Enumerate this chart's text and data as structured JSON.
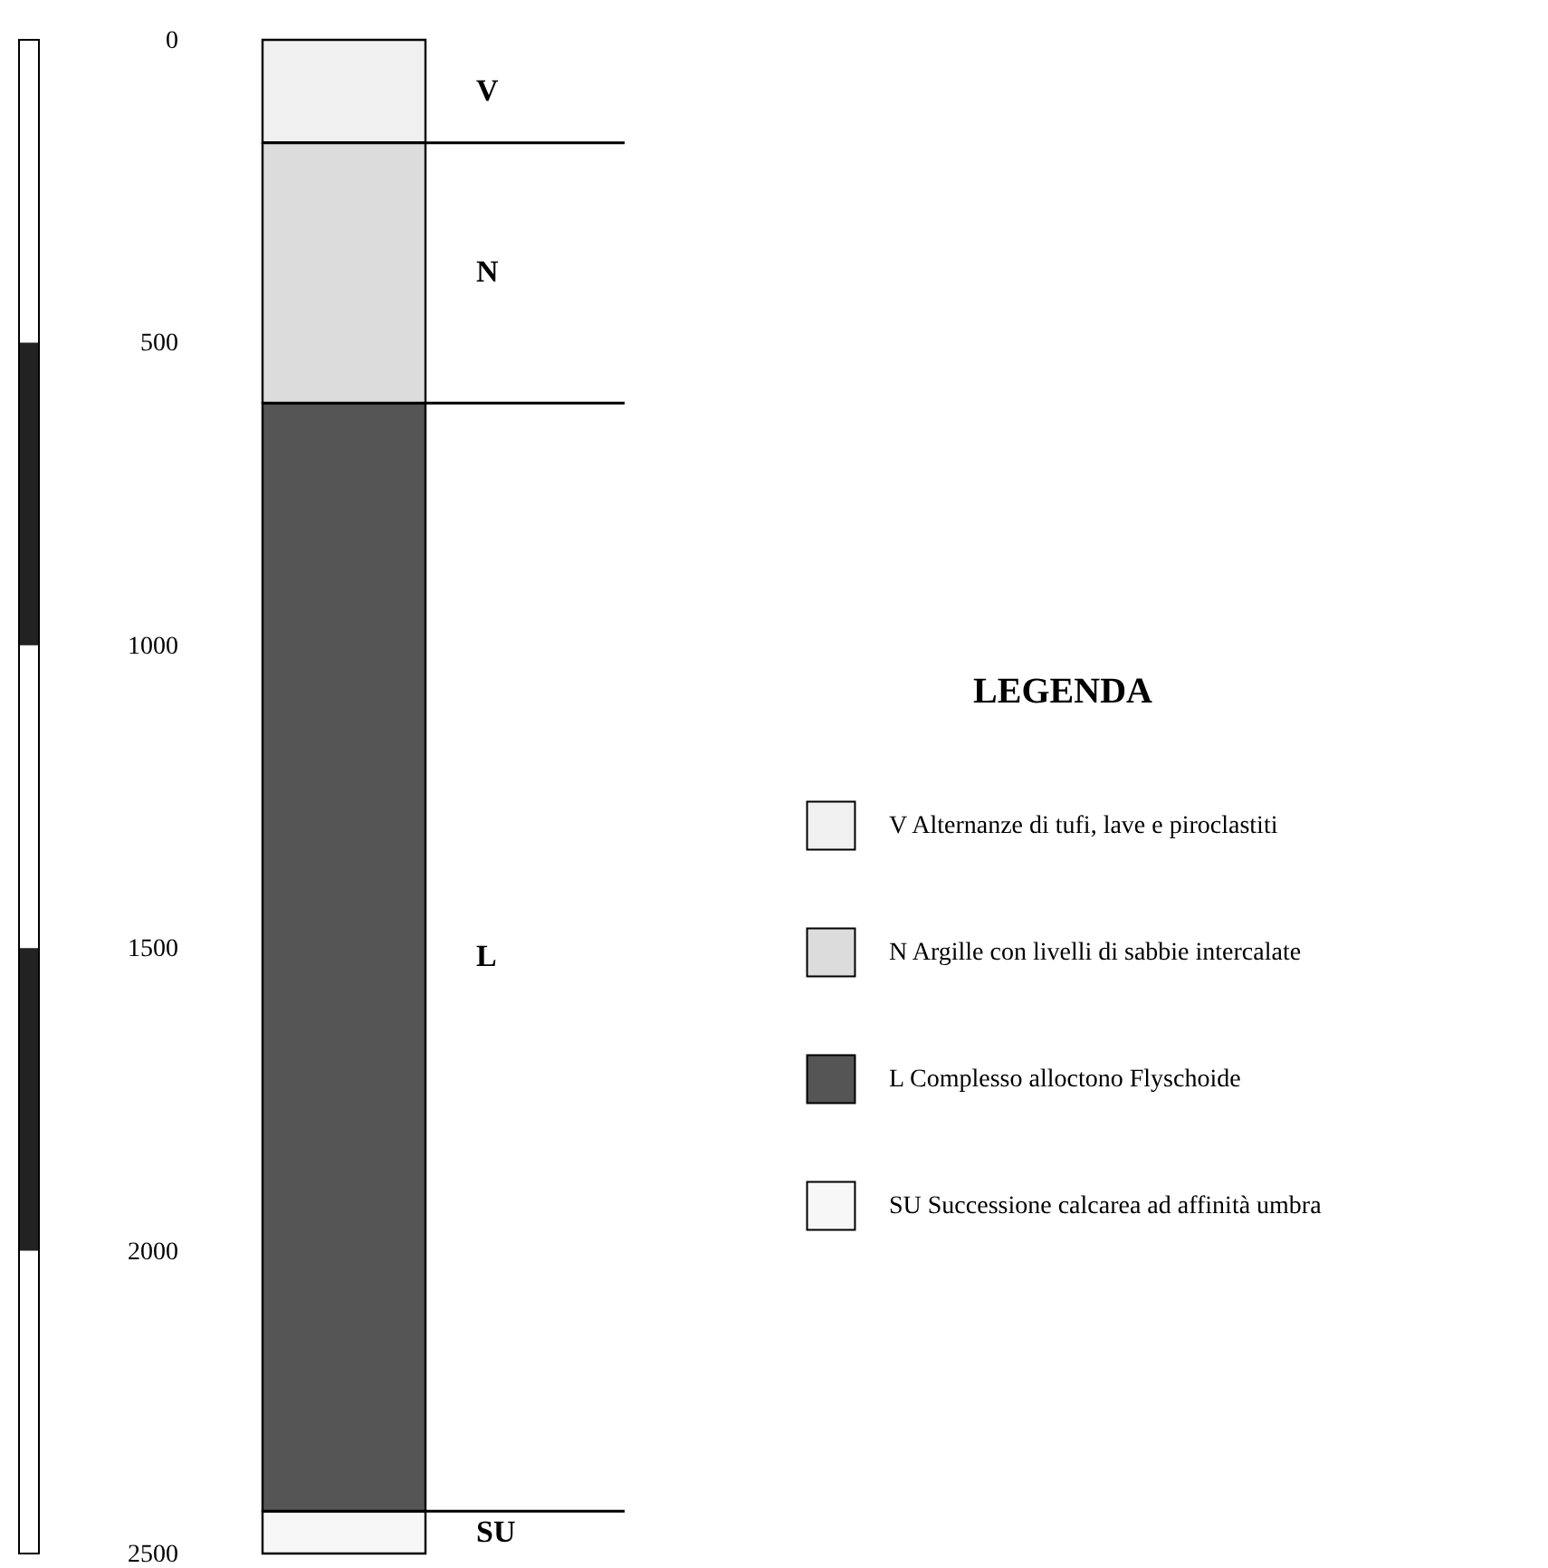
{
  "chart_data": {
    "type": "bar",
    "stacked": true,
    "legend_title": "LEGENDA",
    "legend": "right",
    "categories": [
      null
    ],
    "series": [
      {
        "name": "V Alternanze di tufi, lave e piroclastiti",
        "color": "#f0f0f0",
        "values": [
          170
        ]
      },
      {
        "name": "N Argille con livelli di sabbie intercalate",
        "color": "#dcdcdc",
        "values": [
          430
        ]
      },
      {
        "name": "L Complesso alloctono Flyschoide",
        "color": "#555555",
        "values": [
          1830
        ]
      },
      {
        "name": "SU Successione calcarea ad affinità umbra",
        "color": "#f7f7f7",
        "values": [
          70
        ]
      }
    ],
    "ylim": [
      2500,
      0
    ],
    "yticks": [
      0,
      500,
      1000,
      1500,
      2000,
      2500
    ],
    "ref_lines": [
      {
        "axis": "y",
        "value": 170
      },
      {
        "axis": "y",
        "value": 600
      },
      {
        "axis": "y",
        "value": 2430
      }
    ],
    "annotations": [
      "V",
      "N",
      "L",
      "SU"
    ]
  }
}
